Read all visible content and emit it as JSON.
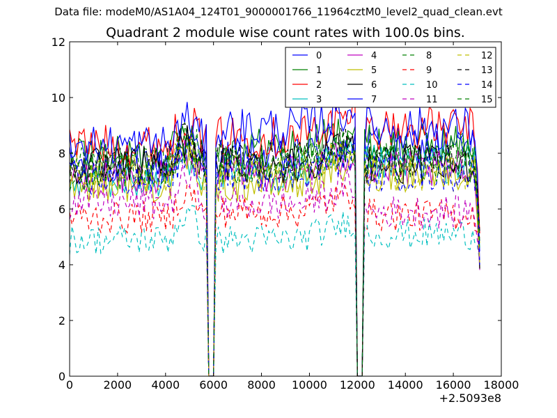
{
  "page": {
    "suptitle": "Data file: modeM0/AS1A04_124T01_9000001766_11964cztM0_level2_quad_clean.evt",
    "title": "Quadrant 2 module wise count rates with 100.0s bins."
  },
  "chart_data": {
    "type": "line",
    "title": "Quadrant 2 module wise count rates with 100.0s bins.",
    "xlabel": "",
    "ylabel": "",
    "x_offset_label": "+2.5093e8",
    "xlim": [
      0,
      18000
    ],
    "ylim": [
      0,
      12
    ],
    "xticks": [
      0,
      2000,
      4000,
      6000,
      8000,
      10000,
      12000,
      14000,
      16000,
      18000
    ],
    "xtick_labels": [
      "0",
      "2000",
      "4000",
      "6000",
      "8000",
      "10000",
      "12000",
      "14000",
      "16000",
      "18000"
    ],
    "yticks": [
      0,
      2,
      4,
      6,
      8,
      10,
      12
    ],
    "ytick_labels": [
      "0",
      "2",
      "4",
      "6",
      "8",
      "10",
      "12"
    ],
    "grid": false,
    "legend_position": "top-right",
    "legend_columns": 4,
    "gaps": [
      [
        5650,
        6200
      ],
      [
        11850,
        12400
      ]
    ],
    "segments": [
      [
        0,
        5700
      ],
      [
        6100,
        11900
      ],
      [
        12300,
        17100
      ]
    ],
    "series": [
      {
        "name": "0",
        "color": "#0000ff",
        "style": "solid",
        "level": [
          7.6,
          7.8,
          8.2
        ]
      },
      {
        "name": "1",
        "color": "#008000",
        "style": "solid",
        "level": [
          7.9,
          8.2,
          8.3
        ]
      },
      {
        "name": "2",
        "color": "#ff0000",
        "style": "solid",
        "level": [
          8.3,
          8.6,
          8.9
        ]
      },
      {
        "name": "3",
        "color": "#00bfbf",
        "style": "solid",
        "level": [
          7.0,
          7.2,
          7.6
        ]
      },
      {
        "name": "4",
        "color": "#bf00bf",
        "style": "solid",
        "level": [
          7.1,
          7.3,
          7.4
        ]
      },
      {
        "name": "5",
        "color": "#bfbf00",
        "style": "solid",
        "level": [
          6.9,
          6.9,
          7.3
        ]
      },
      {
        "name": "6",
        "color": "#000000",
        "style": "solid",
        "level": [
          7.5,
          7.6,
          7.6
        ]
      },
      {
        "name": "7",
        "color": "#0000ff",
        "style": "solid",
        "level": [
          8.3,
          8.9,
          8.9
        ]
      },
      {
        "name": "8",
        "color": "#008000",
        "style": "dashed",
        "level": [
          7.6,
          7.6,
          7.9
        ]
      },
      {
        "name": "9",
        "color": "#ff0000",
        "style": "dashed",
        "level": [
          5.7,
          5.9,
          5.8
        ]
      },
      {
        "name": "10",
        "color": "#00bfbf",
        "style": "dashed",
        "level": [
          4.9,
          4.9,
          5.1
        ]
      },
      {
        "name": "11",
        "color": "#bf00bf",
        "style": "dashed",
        "level": [
          6.2,
          6.2,
          5.9
        ]
      },
      {
        "name": "12",
        "color": "#bfbf00",
        "style": "dashed",
        "level": [
          7.3,
          7.3,
          7.3
        ]
      },
      {
        "name": "13",
        "color": "#000000",
        "style": "dashed",
        "level": [
          7.6,
          7.7,
          7.7
        ]
      },
      {
        "name": "14",
        "color": "#0000ff",
        "style": "dashed",
        "level": [
          7.1,
          7.3,
          7.3
        ]
      },
      {
        "name": "15",
        "color": "#008000",
        "style": "dashed",
        "level": [
          7.3,
          7.6,
          7.6
        ]
      }
    ]
  }
}
